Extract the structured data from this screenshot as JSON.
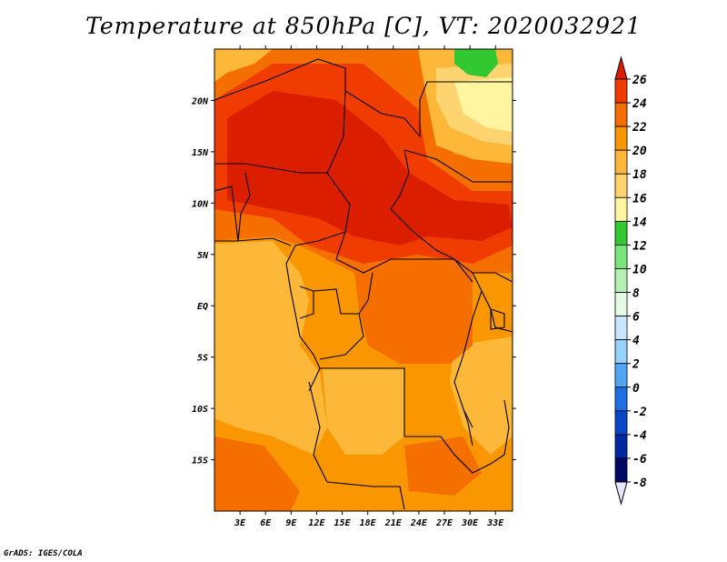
{
  "title": "Temperature at 850hPa [C], VT: 2020032921",
  "credit": "GrADS: IGES/COLA",
  "map": {
    "lon_labels": [
      "3E",
      "6E",
      "9E",
      "12E",
      "15E",
      "18E",
      "21E",
      "24E",
      "27E",
      "30E",
      "33E"
    ],
    "lat_labels": [
      "20N",
      "15N",
      "10N",
      "5N",
      "EQ",
      "5S",
      "10S",
      "15S"
    ],
    "lon_range": [
      0,
      35
    ],
    "lat_range": [
      -20,
      25
    ]
  },
  "colorbar": {
    "levels": [
      "26",
      "24",
      "22",
      "20",
      "18",
      "16",
      "14",
      "12",
      "10",
      "8",
      "6",
      "4",
      "2",
      "0",
      "-2",
      "-4",
      "-6",
      "-8"
    ],
    "colors": [
      "#dc1e00",
      "#f03c00",
      "#f56e00",
      "#fa9600",
      "#fdb839",
      "#fdd46f",
      "#fff5a0",
      "#32c832",
      "#78e678",
      "#b4f0b4",
      "#e6fae6",
      "#c8e6ff",
      "#96d2fa",
      "#50a5f5",
      "#1e6ee6",
      "#0a46c8",
      "#0028a0",
      "#000a64"
    ],
    "top_color": "#dc1e00",
    "bottom_color": "#e6e6ff"
  },
  "colors": {
    "c26": "#dc1e00",
    "c24": "#f03c00",
    "c22": "#f56e00",
    "c20": "#fa9600",
    "c18": "#fdb839",
    "c16": "#fdd46f",
    "c14": "#fff5a0",
    "c12": "#32c832"
  }
}
